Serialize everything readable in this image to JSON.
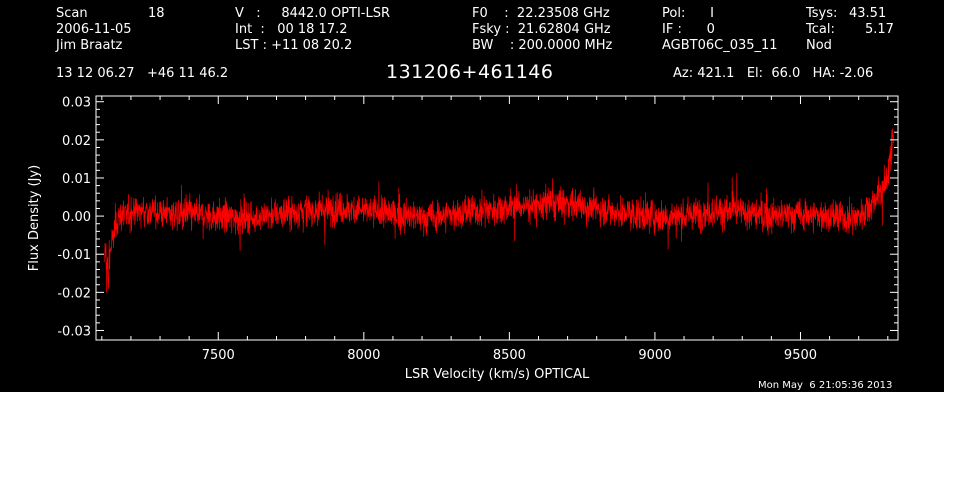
{
  "header": {
    "col1": {
      "scan_label": "Scan",
      "scan_value": "18",
      "date": "2006-11-05",
      "observer": "Jim Braatz"
    },
    "col2": {
      "velocity": "V   :     8442.0 OPTI-LSR",
      "integration": "Int  :   00 18 17.2",
      "lst": "LST : +11 08 20.2"
    },
    "col3": {
      "f0": "F0    :  22.23508 GHz",
      "fsky": "Fsky :  21.62804 GHz",
      "bw": "BW    : 200.0000 MHz"
    },
    "col4": {
      "pol": "Pol:      I",
      "if": "IF :      0",
      "project": "AGBT06C_035_11"
    },
    "col5": {
      "tsys_label": "Tsys:",
      "tsys_value": "43.51",
      "tcal_label": "Tcal:",
      "tcal_value": "5.17",
      "mode": "Nod"
    },
    "coords": "13 12 06.27   +46 11 46.2",
    "source": "131206+461146",
    "pointing": "Az: 421.1   El:  66.0   HA: -2.06"
  },
  "timestamp": "Mon May  6 21:05:36 2013",
  "colors": {
    "background": "#000000",
    "trace": "#ff0000",
    "axes": "#ffffff"
  },
  "chart_data": {
    "type": "line",
    "xlabel": "LSR Velocity (km/s) OPTICAL",
    "ylabel": "Flux Density (Jy)",
    "xlim": [
      7080,
      9835
    ],
    "ylim": [
      -0.0325,
      0.0315
    ],
    "xticks": [
      7500,
      8000,
      8500,
      9000,
      9500
    ],
    "yticks": [
      -0.03,
      -0.02,
      -0.01,
      0.0,
      0.01,
      0.02,
      0.03
    ],
    "ytick_labels": [
      "-0.03",
      "-0.02",
      "-0.01",
      "0.00",
      "0.01",
      "0.02",
      "0.03"
    ],
    "grid": false,
    "series": [
      {
        "color": "#ff0000",
        "x": [
          7110,
          7120,
          7130,
          7150,
          7200,
          7300,
          7400,
          7500,
          7600,
          7700,
          7800,
          7900,
          8000,
          8100,
          8200,
          8300,
          8400,
          8500,
          8600,
          8700,
          8800,
          8900,
          9000,
          9100,
          9200,
          9300,
          9400,
          9500,
          9600,
          9650,
          9700,
          9720,
          9740,
          9760,
          9780,
          9790,
          9800,
          9810,
          9820
        ],
        "y": [
          -0.006,
          -0.012,
          -0.009,
          -0.001,
          0.0015,
          0.001,
          0.0005,
          0.0,
          -0.0005,
          0.0005,
          0.0015,
          0.002,
          0.0015,
          0.0005,
          -0.0005,
          0.0005,
          0.0015,
          0.0025,
          0.003,
          0.0035,
          0.002,
          0.001,
          0.0,
          0.0,
          0.0015,
          0.001,
          0.0,
          0.0005,
          0.0,
          -0.0005,
          0.0,
          0.0015,
          0.003,
          0.005,
          0.0065,
          0.008,
          0.0095,
          0.012,
          0.018
        ]
      }
    ]
  }
}
